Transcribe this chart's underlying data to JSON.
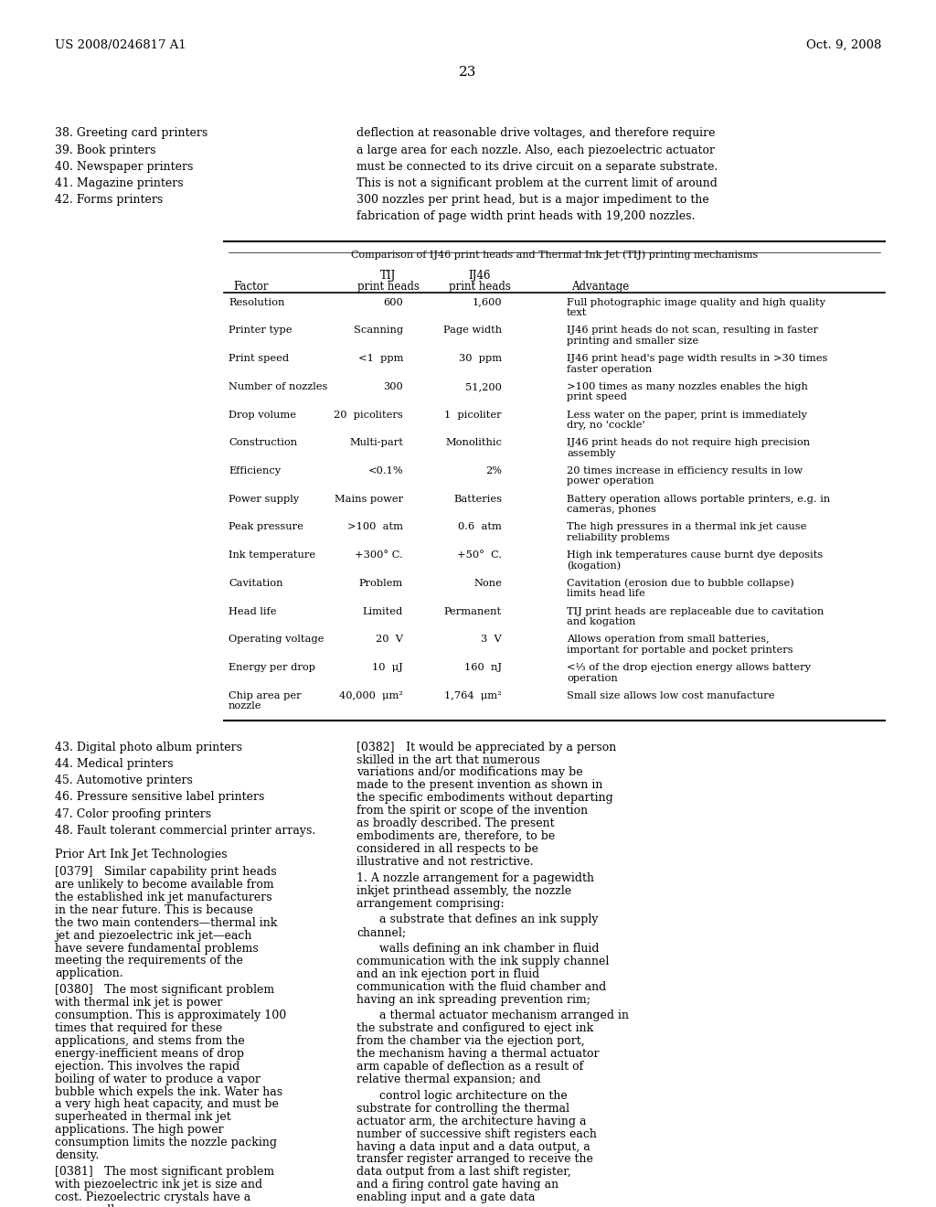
{
  "bg_color": "#ffffff",
  "header_left": "US 2008/0246817 A1",
  "header_right": "Oct. 9, 2008",
  "page_number": "23",
  "left_list_top": [
    "38. Greeting card printers",
    "39. Book printers",
    "40. Newspaper printers",
    "41. Magazine printers",
    "42. Forms printers"
  ],
  "right_para_top": "deflection at reasonable drive voltages, and therefore require a large area for each nozzle. Also, each piezoelectric actuator must be connected to its drive circuit on a separate substrate. This is not a significant problem at the current limit of around 300 nozzles per print head, but is a major impediment to the fabrication of page width print heads with 19,200 nozzles.",
  "table_title": "Comparison of IJ46 print heads and Thermal Ink Jet (TIJ) printing mechanisms",
  "table_col_headers": [
    "Factor",
    "TIJ\nprint heads",
    "IJ46\nprint heads",
    "Advantage"
  ],
  "table_rows": [
    [
      "Resolution",
      "600",
      "1,600",
      "Full photographic image quality and high quality\ntext"
    ],
    [
      "Printer type",
      "Scanning",
      "Page width",
      "IJ46 print heads do not scan, resulting in faster\nprinting and smaller size"
    ],
    [
      "Print speed",
      "<1  ppm",
      "30  ppm",
      "IJ46 print head's page width results in >30 times\nfaster operation"
    ],
    [
      "Number of nozzles",
      "300",
      "51,200",
      ">100 times as many nozzles enables the high\nprint speed"
    ],
    [
      "Drop volume",
      "20  picoliters",
      "1  picoliter",
      "Less water on the paper, print is immediately\ndry, no 'cockle'"
    ],
    [
      "Construction",
      "Multi-part",
      "Monolithic",
      "IJ46 print heads do not require high precision\nassembly"
    ],
    [
      "Efficiency",
      "<0.1%",
      "2%",
      "20 times increase in efficiency results in low\npower operation"
    ],
    [
      "Power supply",
      "Mains power",
      "Batteries",
      "Battery operation allows portable printers, e.g. in\ncameras, phones"
    ],
    [
      "Peak pressure",
      ">100  atm",
      "0.6  atm",
      "The high pressures in a thermal ink jet cause\nreliability problems"
    ],
    [
      "Ink temperature",
      "+300° C.",
      "+50°  C.",
      "High ink temperatures cause burnt dye deposits\n(kogation)"
    ],
    [
      "Cavitation",
      "Problem",
      "None",
      "Cavitation (erosion due to bubble collapse)\nlimits head life"
    ],
    [
      "Head life",
      "Limited",
      "Permanent",
      "TIJ print heads are replaceable due to cavitation\nand kogation"
    ],
    [
      "Operating voltage",
      "20  V",
      "3  V",
      "Allows operation from small batteries,\nimportant for portable and pocket printers"
    ],
    [
      "Energy per drop",
      "10  μJ",
      "160  nJ",
      "<⅓ of the drop ejection energy allows battery\noperation"
    ],
    [
      "Chip area per\nnozzle",
      "40,000  μm²",
      "1,764  μm²",
      "Small size allows low cost manufacture"
    ]
  ],
  "left_list_bottom": [
    "43. Digital photo album printers",
    "44. Medical printers",
    "45. Automotive printers",
    "46. Pressure sensitive label printers",
    "47. Color proofing printers",
    "48. Fault tolerant commercial printer arrays."
  ],
  "section_heading": "Prior Art Ink Jet Technologies",
  "paragraphs_left": [
    "[0379] Similar capability print heads are unlikely to become available from the established ink jet manufacturers in the near future. This is because the two main contenders—thermal ink jet and piezoelectric ink jet—each have severe fundamental problems meeting the requirements of the application.",
    "[0380] The most significant problem with thermal ink jet is power consumption. This is approximately 100 times that required for these applications, and stems from the energy-inefficient means of drop ejection. This involves the rapid boiling of water to produce a vapor bubble which expels the ink. Water has a very high heat capacity, and must be superheated in thermal ink jet applications. The high power consumption limits the nozzle packing density.",
    "[0381] The most significant problem with piezoelectric ink jet is size and cost. Piezoelectric crystals have a very small"
  ],
  "paragraphs_right": [
    "[0382] It would be appreciated by a person skilled in the art that numerous variations and/or modifications may be made to the present invention as shown in the specific embodiments without departing from the spirit or scope of the invention as broadly described. The present embodiments are, therefore, to be considered in all respects to be illustrative and not restrictive.",
    "1. A nozzle arrangement for a pagewidth inkjet printhead assembly, the nozzle arrangement comprising:",
    "  a substrate that defines an ink supply channel;",
    "  walls defining an ink chamber in fluid communication with the ink supply channel and an ink ejection port in fluid communication with the fluid chamber and having an ink spreading prevention rim;",
    "  a thermal actuator mechanism arranged in the substrate and configured to eject ink from the chamber via the ejection port, the mechanism having a thermal actuator arm capable of deflection as a result of relative thermal expansion; and",
    "  control logic architecture on the substrate for controlling the thermal actuator arm, the architecture having a number of successive shift registers each having a data input and a data output, a transfer register arranged to receive the data output from a last shift register, and a firing control gate having an enabling input and a gate data"
  ]
}
